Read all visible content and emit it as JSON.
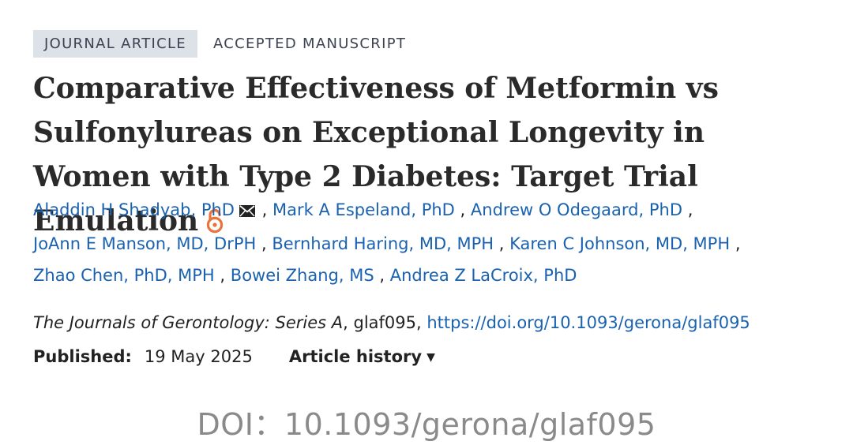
{
  "badges": {
    "type": "JOURNAL ARTICLE",
    "status": "ACCEPTED MANUSCRIPT"
  },
  "article": {
    "title": "Comparative Effectiveness of Metformin vs Sulfonylureas on Exceptional Longevity in Women with Type 2 Diabetes: Target Trial Emulation",
    "open_access_icon": "open-access-lock-icon",
    "accent_color": "#e8733b"
  },
  "authors": [
    {
      "name": "Aladdin H Shadyab, PhD"
    },
    {
      "name": "Mark A Espeland, PhD"
    },
    {
      "name": "Andrew O Odegaard, PhD"
    },
    {
      "name": "JoAnn E Manson, MD, DrPH"
    },
    {
      "name": "Bernhard Haring, MD, MPH"
    },
    {
      "name": "Karen C Johnson, MD, MPH"
    },
    {
      "name": "Zhao Chen, PhD, MPH"
    },
    {
      "name": "Bowei Zhang, MS"
    },
    {
      "name": "Andrea Z LaCroix, PhD"
    }
  ],
  "author_separator": ",",
  "link_color": "#1a62b0",
  "citation": {
    "journal": "The Journals of Gerontology: Series A",
    "article_id": ", glaf095, ",
    "doi_url": "https://doi.org/10.1093/gerona/glaf095"
  },
  "publication": {
    "published_label": "Published:",
    "published_date": "19 May 2025",
    "history_label": "Article history",
    "history_caret": "▼"
  },
  "caption": "DOI：10.1093/gerona/glaf095"
}
